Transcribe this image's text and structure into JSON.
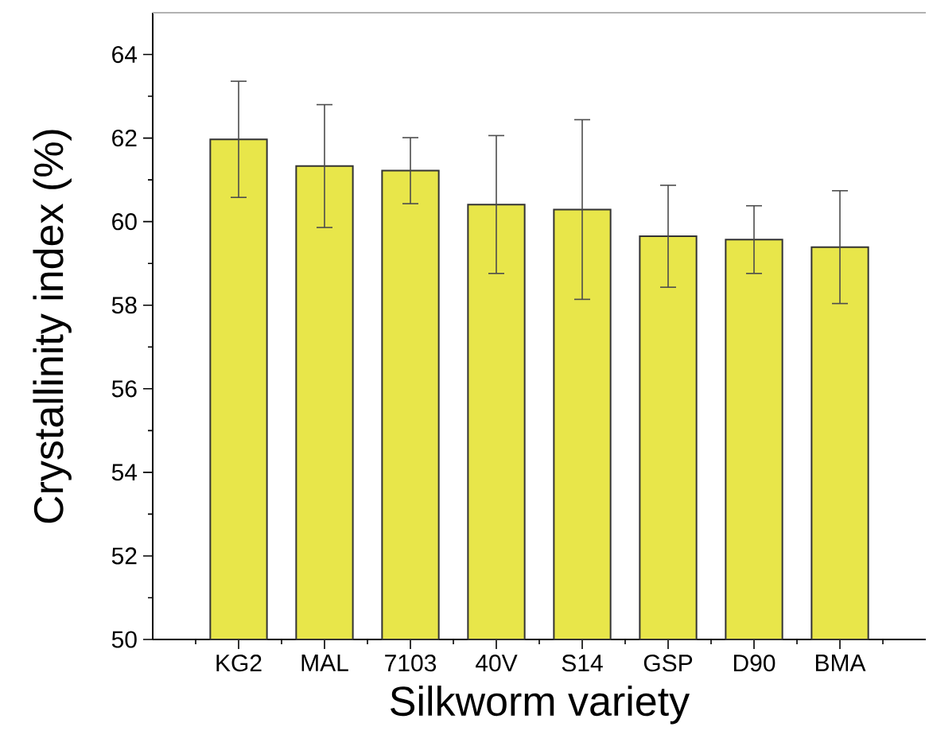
{
  "chart_data": {
    "type": "bar",
    "xlabel": "Silkworm variety",
    "ylabel": "Crystallinity index (%)",
    "categories": [
      "KG2",
      "MAL",
      "7103",
      "40V",
      "S14",
      "GSP",
      "D90",
      "BMA"
    ],
    "values": [
      61.97,
      61.33,
      61.22,
      60.41,
      60.29,
      59.65,
      59.57,
      59.39
    ],
    "errors": [
      1.39,
      1.47,
      0.79,
      1.65,
      2.15,
      1.22,
      0.81,
      1.35
    ],
    "color": "#e8e64a",
    "ylim": [
      50,
      65
    ],
    "yticks": [
      50,
      52,
      54,
      56,
      58,
      60,
      62,
      64
    ],
    "grid": false
  }
}
